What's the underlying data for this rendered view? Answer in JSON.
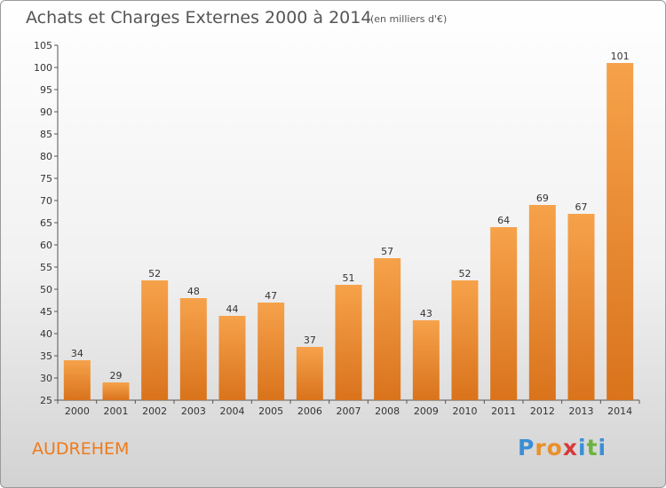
{
  "chart_data": {
    "type": "bar",
    "title": "Achats et Charges Externes 2000 à 2014",
    "subtitle": "(en milliers d'€)",
    "categories": [
      "2000",
      "2001",
      "2002",
      "2003",
      "2004",
      "2005",
      "2006",
      "2007",
      "2008",
      "2009",
      "2010",
      "2011",
      "2012",
      "2013",
      "2014"
    ],
    "values": [
      34,
      29,
      52,
      48,
      44,
      47,
      37,
      51,
      57,
      43,
      52,
      64,
      69,
      67,
      101
    ],
    "ylim": [
      25,
      105
    ],
    "yticks": [
      25,
      30,
      35,
      40,
      45,
      50,
      55,
      60,
      65,
      70,
      75,
      80,
      85,
      90,
      95,
      100,
      105
    ],
    "grid": false,
    "bar_color": "#f08a2c"
  },
  "commune": "AUDREHEM",
  "brand": {
    "letters": [
      "P",
      "r",
      "o",
      "x",
      "i",
      "t",
      "i"
    ],
    "colors": [
      "#3a8fd6",
      "#e9902a",
      "#e9902a",
      "#d63a3a",
      "#3a8fd6",
      "#6cb33f",
      "#3a8fd6"
    ]
  }
}
